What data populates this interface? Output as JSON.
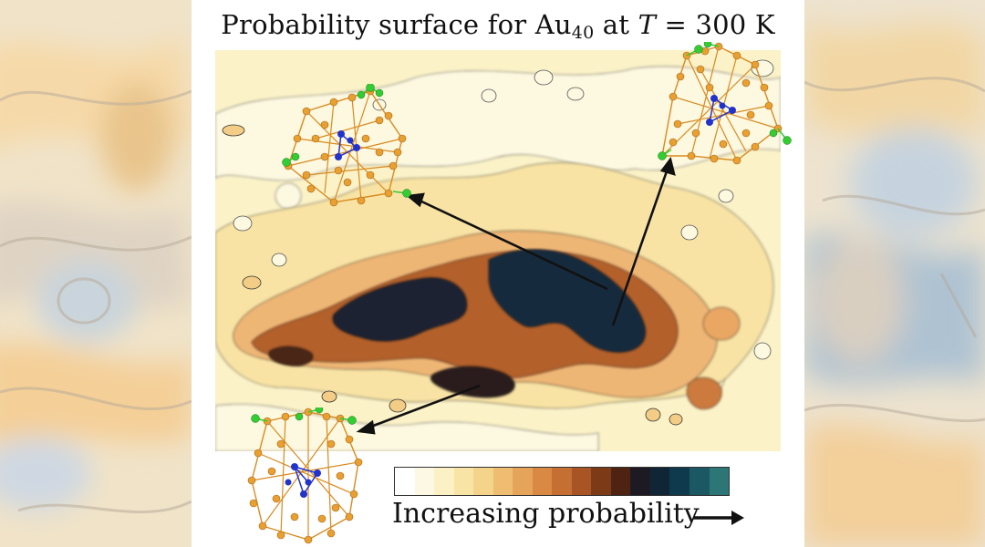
{
  "figure": {
    "title_prefix": "Probability surface for Au",
    "title_subscript": "40",
    "title_mid": " at ",
    "title_var": "T",
    "title_suffix": " = 300 K"
  },
  "colorbar": {
    "label": "Increasing probability",
    "colors": [
      "#ffffff",
      "#fdf8e4",
      "#fbf1c5",
      "#f8e5a6",
      "#f3d48a",
      "#eebd72",
      "#e6a35a",
      "#d98944",
      "#c66f33",
      "#a85424",
      "#7d3a17",
      "#4e2312",
      "#1d1a24",
      "#102637",
      "#0f3a4d",
      "#1a5964",
      "#2d7677"
    ]
  },
  "clusters": [
    {
      "name": "cluster-upper-left",
      "icon": "au40-cluster-icon"
    },
    {
      "name": "cluster-upper-right",
      "icon": "au40-cluster-icon"
    },
    {
      "name": "cluster-lower-left",
      "icon": "au40-cluster-icon"
    }
  ],
  "colors": {
    "gold": "#e8a030",
    "green": "#33cc33",
    "blue": "#2233cc",
    "dark_basin": "#0f2a3a",
    "brown": "#8a4a1c"
  }
}
